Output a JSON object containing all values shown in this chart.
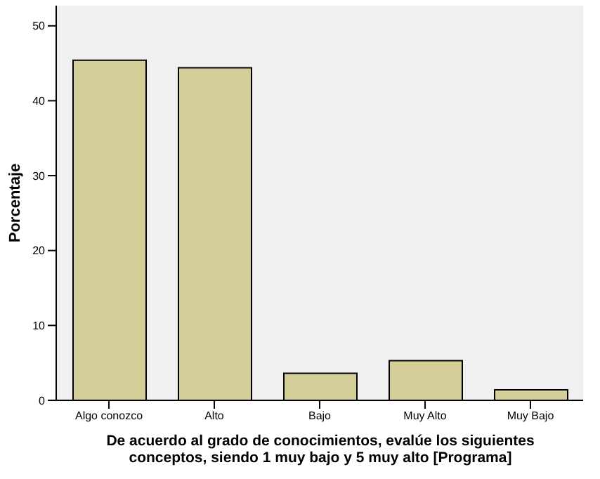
{
  "chart_data": {
    "type": "bar",
    "xlabel": "De acuerdo al grado de conocimientos, evalúe los siguientes conceptos, siendo 1 muy bajo y 5 muy alto [Programa]",
    "ylabel": "Porcentaje",
    "categories": [
      "Algo conozco",
      "Alto",
      "Bajo",
      "Muy Alto",
      "Muy Bajo"
    ],
    "values": [
      45.4,
      44.4,
      3.6,
      5.3,
      1.4
    ],
    "color": "#d4cf98",
    "ylim": [
      0,
      52.7
    ],
    "yticks": [
      0,
      10,
      20,
      30,
      40,
      50
    ],
    "grid": false
  }
}
